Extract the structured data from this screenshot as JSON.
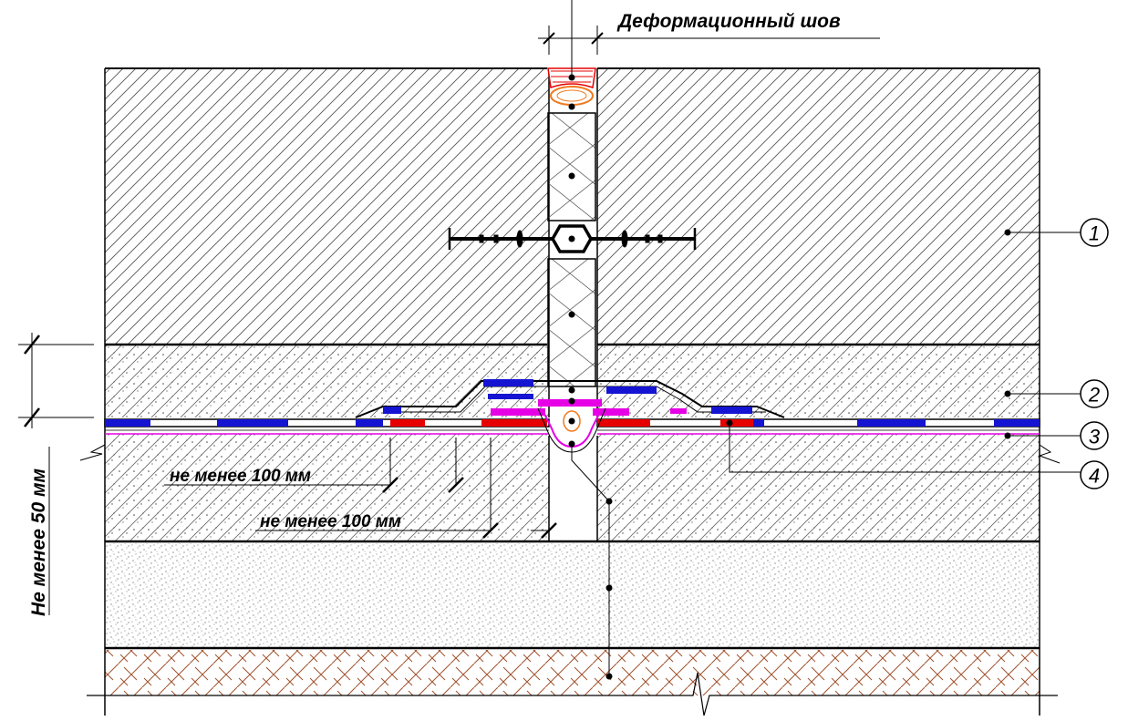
{
  "title": "Деформационный шов",
  "dimension_labels": {
    "overlap_top": "не менее 100 мм",
    "overlap_bottom": "не менее 100 мм",
    "thickness": "Не менее 50 мм"
  },
  "callouts": [
    {
      "number": "1"
    },
    {
      "number": "2"
    },
    {
      "number": "3"
    },
    {
      "number": "4"
    }
  ],
  "colors": {
    "membrane_blue": "#1414d2",
    "tape_red": "#e60000",
    "tape_magenta": "#e600e6",
    "sealant_orange": "#f07a1e",
    "soil_brown": "#a0522d",
    "line_black": "#000000"
  }
}
